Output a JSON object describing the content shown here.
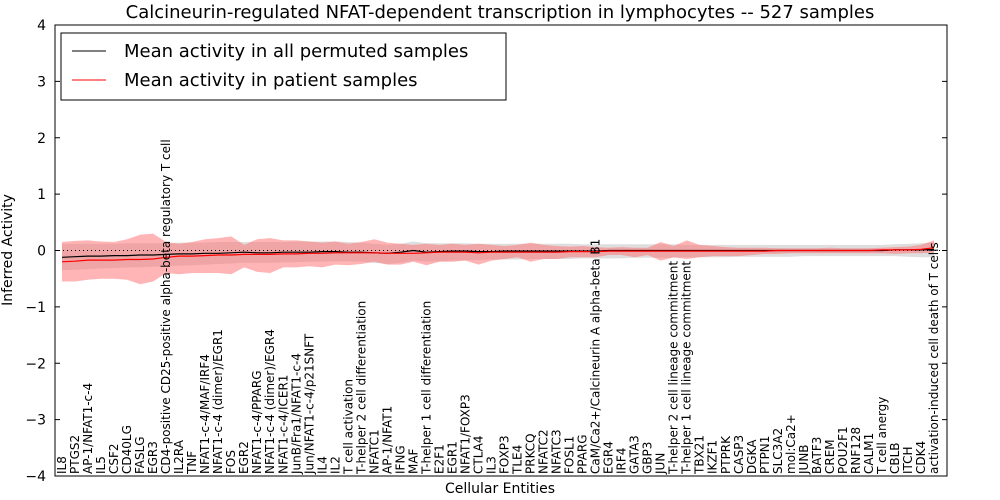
{
  "chart_data": {
    "type": "line",
    "title": "Calcineurin-regulated NFAT-dependent transcription in lymphocytes -- 527 samples",
    "xlabel": "Cellular Entities",
    "ylabel": "Inferred Activity",
    "ylim": [
      -4,
      4
    ],
    "yticks": [
      "−4",
      "−3",
      "−2",
      "−1",
      "0",
      "1",
      "2",
      "3",
      "4"
    ],
    "yticks_values": [
      -4,
      -3,
      -2,
      -1,
      0,
      1,
      2,
      3,
      4
    ],
    "legend_position": "top-left",
    "categories": [
      "IL8",
      "PTGS2",
      "AP-1/NFAT1-c-4",
      "IL5",
      "CSF2",
      "CD40LG",
      "FASLG",
      "EGR3",
      "CD4-positive CD25-positive alpha-beta regulatory T cell",
      "IL2RA",
      "TNF",
      "NFAT1-c-4/MAF/IRF4",
      "NFAT1-c-4 (dimer)/EGR1",
      "FOS",
      "EGR2",
      "NFAT1-c-4/PPARG",
      "NFAT1-c-4 (dimer)/EGR4",
      "NFAT1-c-4/ICER1",
      "JunB/Fra1/NFAT1-c-4",
      "Jun/NFAT1-c-4/p21SNFT",
      "IL4",
      "IL2",
      "T cell activation",
      "T-helper 2 cell differentiation",
      "NFATC1",
      "AP-1/NFAT1",
      "IFNG",
      "MAF",
      "T-helper 1 cell differentiation",
      "E2F1",
      "EGR1",
      "NFAT1/FOXP3",
      "CTLA4",
      "IL3",
      "FOXP3",
      "TLE4",
      "PRKCQ",
      "NFATC2",
      "NFATC3",
      "FOSL1",
      "PPARG",
      "CaM/Ca2+/Calcineurin A alpha-beta B1",
      "EGR4",
      "IRF4",
      "GATA3",
      "GBP3",
      "JUN",
      "T-helper 2 cell lineage commitment",
      "T-helper 1 cell lineage commitment",
      "TBX21",
      "IKZF1",
      "PTPRK",
      "CASP3",
      "DGKA",
      "PTPN1",
      "SLC3A2",
      "mol:Ca2+",
      "JUNB",
      "BATF3",
      "CREM",
      "POU2F1",
      "RNF128",
      "CALM1",
      "T cell anergy",
      "CBLB",
      "ITCH",
      "CDK4",
      "activation-induced cell death of T cells"
    ],
    "series": [
      {
        "name": "Mean activity in all permuted samples",
        "color": "#000000",
        "values": [
          -0.12,
          -0.11,
          -0.1,
          -0.1,
          -0.09,
          -0.09,
          -0.08,
          -0.08,
          -0.07,
          -0.06,
          -0.06,
          -0.05,
          -0.05,
          -0.04,
          -0.03,
          -0.04,
          -0.04,
          -0.03,
          -0.03,
          -0.03,
          -0.02,
          -0.02,
          -0.03,
          -0.03,
          -0.04,
          -0.05,
          -0.03,
          0.0,
          -0.03,
          -0.02,
          -0.01,
          -0.01,
          -0.02,
          -0.02,
          -0.01,
          -0.01,
          -0.01,
          -0.01,
          -0.01,
          -0.01,
          -0.01,
          -0.01,
          0.0,
          0.0,
          0.0,
          0.0,
          0.0,
          0.0,
          0.0,
          0.0,
          0.0,
          0.0,
          0.0,
          0.0,
          0.0,
          0.0,
          0.0,
          0.0,
          0.0,
          0.0,
          0.0,
          0.0,
          0.0,
          0.0,
          0.01,
          0.01,
          0.01,
          0.02
        ],
        "lower": [
          -0.35,
          -0.34,
          -0.33,
          -0.32,
          -0.31,
          -0.3,
          -0.3,
          -0.29,
          -0.28,
          -0.27,
          -0.26,
          -0.25,
          -0.24,
          -0.23,
          -0.22,
          -0.22,
          -0.22,
          -0.21,
          -0.21,
          -0.2,
          -0.2,
          -0.19,
          -0.19,
          -0.2,
          -0.22,
          -0.24,
          -0.22,
          -0.18,
          -0.2,
          -0.19,
          -0.18,
          -0.17,
          -0.17,
          -0.16,
          -0.16,
          -0.16,
          -0.15,
          -0.15,
          -0.15,
          -0.15,
          -0.14,
          -0.14,
          -0.14,
          -0.14,
          -0.13,
          -0.13,
          -0.13,
          -0.13,
          -0.12,
          -0.12,
          -0.12,
          -0.12,
          -0.11,
          -0.11,
          -0.11,
          -0.11,
          -0.11,
          -0.1,
          -0.1,
          -0.1,
          -0.1,
          -0.1,
          -0.1,
          -0.1,
          -0.1,
          -0.11,
          -0.12,
          -0.12
        ],
        "upper": [
          0.12,
          0.12,
          0.12,
          0.12,
          0.12,
          0.13,
          0.13,
          0.13,
          0.13,
          0.14,
          0.14,
          0.14,
          0.15,
          0.15,
          0.15,
          0.15,
          0.15,
          0.15,
          0.16,
          0.16,
          0.16,
          0.16,
          0.15,
          0.14,
          0.12,
          0.1,
          0.12,
          0.16,
          0.13,
          0.13,
          0.13,
          0.13,
          0.12,
          0.12,
          0.12,
          0.12,
          0.12,
          0.12,
          0.12,
          0.12,
          0.11,
          0.11,
          0.11,
          0.11,
          0.11,
          0.11,
          0.11,
          0.11,
          0.1,
          0.1,
          0.1,
          0.1,
          0.1,
          0.1,
          0.1,
          0.1,
          0.1,
          0.1,
          0.1,
          0.1,
          0.1,
          0.1,
          0.1,
          0.1,
          0.11,
          0.12,
          0.13,
          0.14
        ]
      },
      {
        "name": "Mean activity in patient samples",
        "color": "#ff0000",
        "values": [
          -0.2,
          -0.19,
          -0.17,
          -0.17,
          -0.17,
          -0.16,
          -0.16,
          -0.15,
          -0.12,
          -0.1,
          -0.1,
          -0.09,
          -0.08,
          -0.08,
          -0.07,
          -0.07,
          -0.07,
          -0.06,
          -0.06,
          -0.05,
          -0.05,
          -0.04,
          -0.04,
          -0.04,
          -0.04,
          -0.05,
          -0.05,
          -0.05,
          -0.04,
          -0.03,
          -0.03,
          -0.03,
          -0.04,
          -0.03,
          -0.03,
          -0.03,
          -0.03,
          -0.03,
          -0.03,
          -0.02,
          -0.02,
          -0.02,
          -0.01,
          -0.01,
          -0.01,
          -0.01,
          -0.01,
          -0.01,
          -0.01,
          -0.01,
          -0.01,
          -0.01,
          -0.01,
          -0.01,
          -0.01,
          0.0,
          0.0,
          0.0,
          0.0,
          0.0,
          0.0,
          0.0,
          0.0,
          0.01,
          0.01,
          0.01,
          0.02,
          0.05
        ],
        "lower": [
          -0.55,
          -0.55,
          -0.52,
          -0.5,
          -0.5,
          -0.52,
          -0.6,
          -0.55,
          -0.4,
          -0.42,
          -0.4,
          -0.4,
          -0.4,
          -0.42,
          -0.3,
          -0.38,
          -0.4,
          -0.3,
          -0.3,
          -0.28,
          -0.3,
          -0.25,
          -0.26,
          -0.24,
          -0.2,
          -0.25,
          -0.25,
          -0.2,
          -0.26,
          -0.2,
          -0.2,
          -0.18,
          -0.25,
          -0.18,
          -0.15,
          -0.12,
          -0.2,
          -0.15,
          -0.15,
          -0.12,
          -0.12,
          -0.12,
          -0.08,
          -0.08,
          -0.12,
          -0.08,
          -0.18,
          -0.12,
          -0.15,
          -0.12,
          -0.1,
          -0.1,
          -0.1,
          -0.08,
          -0.06,
          -0.06,
          -0.05,
          -0.05,
          -0.05,
          -0.05,
          -0.05,
          -0.05,
          -0.05,
          -0.05,
          -0.06,
          -0.05,
          -0.05,
          -0.04
        ],
        "upper": [
          0.15,
          0.17,
          0.18,
          0.16,
          0.15,
          0.2,
          0.28,
          0.3,
          0.15,
          0.12,
          0.15,
          0.2,
          0.22,
          0.25,
          0.1,
          0.2,
          0.22,
          0.18,
          0.18,
          0.16,
          0.14,
          0.16,
          0.12,
          0.15,
          0.2,
          0.14,
          0.12,
          0.1,
          0.12,
          0.1,
          0.12,
          0.1,
          0.12,
          0.1,
          0.08,
          0.1,
          0.14,
          0.1,
          0.08,
          0.07,
          0.08,
          0.06,
          0.05,
          0.06,
          0.05,
          0.05,
          0.15,
          0.08,
          0.18,
          0.1,
          0.08,
          0.06,
          0.05,
          0.05,
          0.05,
          0.04,
          0.04,
          0.04,
          0.04,
          0.05,
          0.04,
          0.04,
          0.04,
          0.05,
          0.06,
          0.07,
          0.1,
          0.18
        ]
      }
    ]
  }
}
